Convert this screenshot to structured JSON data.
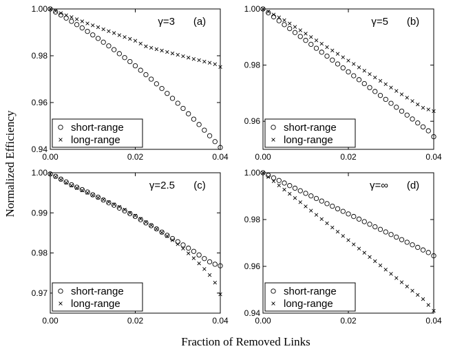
{
  "figure": {
    "ylabel": "Normalized Efficiency",
    "xlabel": "Fraction of Removed Links"
  },
  "chart_data": [
    {
      "type": "scatter",
      "panel_label": "(a)",
      "gamma_label": "γ=3",
      "xlim": [
        0,
        0.04
      ],
      "ylim": [
        0.94,
        1.0
      ],
      "x_ticks": [
        "0.00",
        "0.02",
        "0.04"
      ],
      "y_ticks": [
        "0.94",
        "0.96",
        "0.98",
        "1.00"
      ],
      "legend_position": "bottom-left",
      "series": [
        {
          "name": "short-range",
          "marker": "circle",
          "x": [
            0,
            0.00125,
            0.0025,
            0.00375,
            0.005,
            0.00625,
            0.0075,
            0.00875,
            0.01,
            0.01125,
            0.0125,
            0.01375,
            0.015,
            0.01625,
            0.0175,
            0.01875,
            0.02,
            0.02125,
            0.0225,
            0.02375,
            0.025,
            0.02625,
            0.0275,
            0.02875,
            0.03,
            0.03125,
            0.0325,
            0.03375,
            0.035,
            0.03625,
            0.0375,
            0.03875,
            0.04
          ],
          "y": [
            1.0,
            0.9987,
            0.9974,
            0.9961,
            0.9947,
            0.9933,
            0.9919,
            0.9904,
            0.9889,
            0.9874,
            0.9858,
            0.9842,
            0.9826,
            0.9809,
            0.9792,
            0.9775,
            0.9757,
            0.9738,
            0.9719,
            0.97,
            0.968,
            0.966,
            0.9639,
            0.9618,
            0.9597,
            0.9575,
            0.9552,
            0.9529,
            0.9506,
            0.9482,
            0.9458,
            0.9433,
            0.9408
          ]
        },
        {
          "name": "long-range",
          "marker": "cross",
          "x": [
            0,
            0.00125,
            0.0025,
            0.00375,
            0.005,
            0.00625,
            0.0075,
            0.00875,
            0.01,
            0.01125,
            0.0125,
            0.01375,
            0.015,
            0.01625,
            0.0175,
            0.01875,
            0.02,
            0.02125,
            0.0225,
            0.02375,
            0.025,
            0.02625,
            0.0275,
            0.02875,
            0.03,
            0.03125,
            0.0325,
            0.03375,
            0.035,
            0.03625,
            0.0375,
            0.03875,
            0.04
          ],
          "y": [
            1.0,
            0.9991,
            0.9982,
            0.9973,
            0.9965,
            0.9956,
            0.9947,
            0.9938,
            0.993,
            0.9922,
            0.9913,
            0.9905,
            0.9897,
            0.9888,
            0.988,
            0.9872,
            0.9864,
            0.9852,
            0.984,
            0.9834,
            0.9828,
            0.9822,
            0.9816,
            0.981,
            0.9804,
            0.9798,
            0.9792,
            0.9786,
            0.9781,
            0.9775,
            0.977,
            0.9764,
            0.9752
          ]
        }
      ]
    },
    {
      "type": "scatter",
      "panel_label": "(b)",
      "gamma_label": "γ=5",
      "xlim": [
        0,
        0.04
      ],
      "ylim": [
        0.95,
        1.0
      ],
      "x_ticks": [
        "0.00",
        "0.02",
        "0.04"
      ],
      "y_ticks": [
        "0.96",
        "0.98",
        "1.00"
      ],
      "legend_position": "bottom-left",
      "series": [
        {
          "name": "short-range",
          "marker": "circle",
          "x": [
            0,
            0.00125,
            0.0025,
            0.00375,
            0.005,
            0.00625,
            0.0075,
            0.00875,
            0.01,
            0.01125,
            0.0125,
            0.01375,
            0.015,
            0.01625,
            0.0175,
            0.01875,
            0.02,
            0.02125,
            0.0225,
            0.02375,
            0.025,
            0.02625,
            0.0275,
            0.02875,
            0.03,
            0.03125,
            0.0325,
            0.03375,
            0.035,
            0.03625,
            0.0375,
            0.03875,
            0.04
          ],
          "y": [
            1.0,
            0.9986,
            0.9972,
            0.9958,
            0.9944,
            0.993,
            0.9916,
            0.9902,
            0.9888,
            0.9874,
            0.986,
            0.9846,
            0.9832,
            0.9818,
            0.9804,
            0.979,
            0.9776,
            0.9762,
            0.9748,
            0.9734,
            0.972,
            0.9706,
            0.9692,
            0.9678,
            0.9664,
            0.965,
            0.9636,
            0.9622,
            0.9608,
            0.9594,
            0.958,
            0.9566,
            0.9545
          ]
        },
        {
          "name": "long-range",
          "marker": "cross",
          "x": [
            0,
            0.00125,
            0.0025,
            0.00375,
            0.005,
            0.00625,
            0.0075,
            0.00875,
            0.01,
            0.01125,
            0.0125,
            0.01375,
            0.015,
            0.01625,
            0.0175,
            0.01875,
            0.02,
            0.02125,
            0.0225,
            0.02375,
            0.025,
            0.02625,
            0.0275,
            0.02875,
            0.03,
            0.03125,
            0.0325,
            0.03375,
            0.035,
            0.03625,
            0.0375,
            0.03875,
            0.04
          ],
          "y": [
            1.0,
            0.999,
            0.998,
            0.997,
            0.996,
            0.9948,
            0.9936,
            0.9924,
            0.9912,
            0.99,
            0.9888,
            0.9876,
            0.9864,
            0.9852,
            0.984,
            0.9828,
            0.9816,
            0.9804,
            0.9792,
            0.978,
            0.9768,
            0.9756,
            0.9744,
            0.9732,
            0.972,
            0.9708,
            0.9696,
            0.9684,
            0.9672,
            0.966,
            0.9648,
            0.9642,
            0.9636
          ]
        }
      ]
    },
    {
      "type": "scatter",
      "panel_label": "(c)",
      "gamma_label": "γ=2.5",
      "xlim": [
        0,
        0.04
      ],
      "ylim": [
        0.965,
        1.0
      ],
      "x_ticks": [
        "0.00",
        "0.02",
        "0.04"
      ],
      "y_ticks": [
        "0.97",
        "0.98",
        "0.99",
        "1.00"
      ],
      "legend_position": "bottom-left",
      "series": [
        {
          "name": "short-range",
          "marker": "circle",
          "x": [
            0,
            0.00125,
            0.0025,
            0.00375,
            0.005,
            0.00625,
            0.0075,
            0.00875,
            0.01,
            0.01125,
            0.0125,
            0.01375,
            0.015,
            0.01625,
            0.0175,
            0.01875,
            0.02,
            0.02125,
            0.0225,
            0.02375,
            0.025,
            0.02625,
            0.0275,
            0.02875,
            0.03,
            0.03125,
            0.0325,
            0.03375,
            0.035,
            0.03625,
            0.0375,
            0.03875,
            0.04
          ],
          "y": [
            0.9997,
            0.9991,
            0.9984,
            0.9977,
            0.997,
            0.9964,
            0.9958,
            0.9952,
            0.9945,
            0.9939,
            0.9932,
            0.9925,
            0.9919,
            0.9912,
            0.9905,
            0.9898,
            0.9891,
            0.9883,
            0.9875,
            0.9868,
            0.986,
            0.9852,
            0.9844,
            0.9836,
            0.9828,
            0.982,
            0.9812,
            0.9804,
            0.9795,
            0.9786,
            0.9778,
            0.9772,
            0.9768
          ]
        },
        {
          "name": "long-range",
          "marker": "cross",
          "x": [
            0,
            0.00125,
            0.0025,
            0.00375,
            0.005,
            0.00625,
            0.0075,
            0.00875,
            0.01,
            0.01125,
            0.0125,
            0.01375,
            0.015,
            0.01625,
            0.0175,
            0.01875,
            0.02,
            0.02125,
            0.0225,
            0.02375,
            0.025,
            0.02625,
            0.0275,
            0.02875,
            0.03,
            0.03125,
            0.0325,
            0.03375,
            0.035,
            0.03625,
            0.0375,
            0.03875,
            0.04
          ],
          "y": [
            0.9997,
            0.999,
            0.9983,
            0.9975,
            0.9968,
            0.9962,
            0.9956,
            0.995,
            0.9944,
            0.9938,
            0.9933,
            0.9927,
            0.9921,
            0.9915,
            0.9908,
            0.99,
            0.9893,
            0.9885,
            0.9877,
            0.9869,
            0.986,
            0.9851,
            0.9842,
            0.9832,
            0.9822,
            0.9811,
            0.9799,
            0.9787,
            0.9774,
            0.976,
            0.9745,
            0.9726,
            0.9697
          ]
        }
      ]
    },
    {
      "type": "scatter",
      "panel_label": "(d)",
      "gamma_label": "γ=∞",
      "xlim": [
        0,
        0.04
      ],
      "ylim": [
        0.94,
        1.0
      ],
      "x_ticks": [
        "0.00",
        "0.02",
        "0.04"
      ],
      "y_ticks": [
        "0.94",
        "0.96",
        "0.98",
        "1.00"
      ],
      "legend_position": "bottom-left",
      "series": [
        {
          "name": "short-range",
          "marker": "circle",
          "x": [
            0,
            0.00125,
            0.0025,
            0.00375,
            0.005,
            0.00625,
            0.0075,
            0.00875,
            0.01,
            0.01125,
            0.0125,
            0.01375,
            0.015,
            0.01625,
            0.0175,
            0.01875,
            0.02,
            0.02125,
            0.0225,
            0.02375,
            0.025,
            0.02625,
            0.0275,
            0.02875,
            0.03,
            0.03125,
            0.0325,
            0.03375,
            0.035,
            0.03625,
            0.0375,
            0.03875,
            0.04
          ],
          "y": [
            1.0,
            0.9989,
            0.9978,
            0.9967,
            0.9956,
            0.9945,
            0.9934,
            0.9923,
            0.9912,
            0.9901,
            0.989,
            0.9879,
            0.9868,
            0.9857,
            0.9846,
            0.9835,
            0.9824,
            0.9813,
            0.9802,
            0.9791,
            0.978,
            0.9769,
            0.9758,
            0.9747,
            0.9736,
            0.9725,
            0.9714,
            0.9703,
            0.9692,
            0.9681,
            0.967,
            0.9659,
            0.9645
          ]
        },
        {
          "name": "long-range",
          "marker": "cross",
          "x": [
            0,
            0.00125,
            0.0025,
            0.00375,
            0.005,
            0.00625,
            0.0075,
            0.00875,
            0.01,
            0.01125,
            0.0125,
            0.01375,
            0.015,
            0.01625,
            0.0175,
            0.01875,
            0.02,
            0.02125,
            0.0225,
            0.02375,
            0.025,
            0.02625,
            0.0275,
            0.02875,
            0.03,
            0.03125,
            0.0325,
            0.03375,
            0.035,
            0.03625,
            0.0375,
            0.03875,
            0.04
          ],
          "y": [
            1.0,
            0.9982,
            0.9964,
            0.9946,
            0.9928,
            0.991,
            0.9892,
            0.9874,
            0.9856,
            0.9838,
            0.982,
            0.9802,
            0.9784,
            0.9766,
            0.9748,
            0.973,
            0.9712,
            0.9694,
            0.9676,
            0.9658,
            0.964,
            0.9622,
            0.9604,
            0.9586,
            0.9568,
            0.955,
            0.9532,
            0.9514,
            0.9496,
            0.9478,
            0.946,
            0.9435,
            0.941
          ]
        }
      ]
    }
  ]
}
